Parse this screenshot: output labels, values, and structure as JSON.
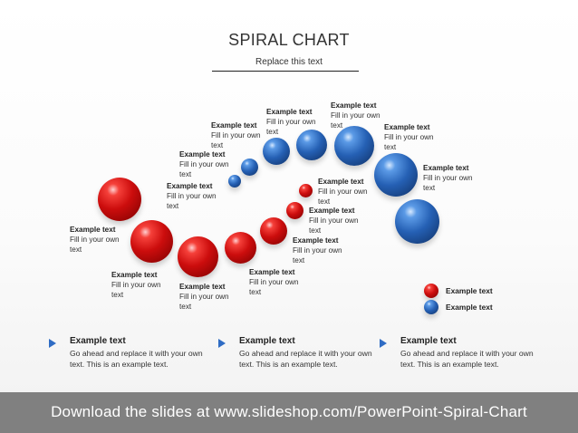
{
  "title": "SPIRAL CHART",
  "subtitle": "Replace this text",
  "colors": {
    "red": "#cc0d0d",
    "blue": "#2560b4",
    "arrow": "#2f6cc4",
    "footer": "#808080"
  },
  "spiral_labels": [
    {
      "heading": "Example text",
      "body": "Fill in your own text"
    },
    {
      "heading": "Example text",
      "body": "Fill in your own text"
    },
    {
      "heading": "Example text",
      "body": "Fill in your own text"
    },
    {
      "heading": "Example text",
      "body": "Fill in your own text"
    },
    {
      "heading": "Example text",
      "body": "Fill in your own text"
    },
    {
      "heading": "Example text",
      "body": "Fill in your own text"
    },
    {
      "heading": "Example text",
      "body": "Fill in your own text"
    },
    {
      "heading": "Example text",
      "body": "Fill in your own text"
    },
    {
      "heading": "Example text",
      "body": "Fill in your own text"
    },
    {
      "heading": "Example text",
      "body": "Fill in your own text"
    },
    {
      "heading": "Example text",
      "body": "Fill in your own text"
    },
    {
      "heading": "Example text",
      "body": "Fill in your own text"
    },
    {
      "heading": "Example text",
      "body": "Fill in your own text"
    },
    {
      "heading": "Example text",
      "body": "Fill in your own text"
    }
  ],
  "legend": [
    {
      "color": "red",
      "label": "Example text"
    },
    {
      "color": "blue",
      "label": "Example text"
    }
  ],
  "columns": [
    {
      "heading": "Example text",
      "body": "Go ahead and replace it with your own text. This is an example text."
    },
    {
      "heading": "Example text",
      "body": "Go ahead and replace it with your own text. This is an example text."
    },
    {
      "heading": "Example text",
      "body": "Go ahead and replace it with your own text. This is an example text."
    }
  ],
  "footer": "Download the slides at www.slideshop.com/PowerPoint-Spiral-Chart"
}
